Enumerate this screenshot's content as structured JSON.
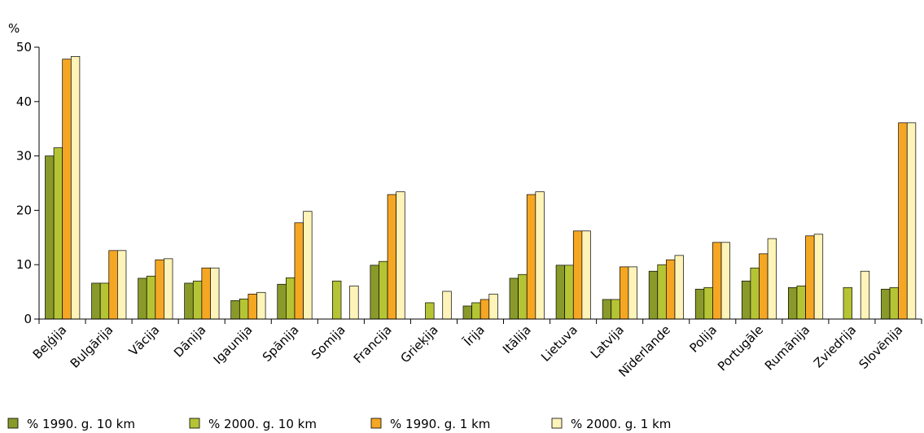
{
  "chart_data": {
    "type": "bar",
    "ylabel": "%",
    "ylim": [
      0,
      50
    ],
    "yticks": [
      0,
      10,
      20,
      30,
      40,
      50
    ],
    "grid": false,
    "legend_position": "bottom",
    "categories": [
      "Beļģija",
      "Bulgārija",
      "Vācija",
      "Dānija",
      "Igaunija",
      "Spānija",
      "Somija",
      "Francija",
      "Grieķija",
      "Īrija",
      "Itālija",
      "Lietuva",
      "Latvija",
      "Nīderlande",
      "Polija",
      "Portugāle",
      "Rumānija",
      "Zviedrija",
      "Slovēnija"
    ],
    "series": [
      {
        "name": "% 1990. g. 10 km",
        "color": "#8a9a2a",
        "values": [
          30,
          6.6,
          7.5,
          6.6,
          3.4,
          6.4,
          null,
          9.9,
          null,
          2.4,
          7.5,
          9.9,
          3.6,
          8.8,
          5.5,
          7.0,
          5.8,
          null,
          5.5
        ]
      },
      {
        "name": "% 2000. g. 10 km",
        "color": "#b5c434",
        "values": [
          31.5,
          6.6,
          7.9,
          7.0,
          3.7,
          7.6,
          7.0,
          10.6,
          3.0,
          3.0,
          8.2,
          9.9,
          3.6,
          10.0,
          5.8,
          9.4,
          6.1,
          5.8,
          5.8
        ]
      },
      {
        "name": "% 1990. g. 1 km",
        "color": "#f5a623",
        "values": [
          47.8,
          12.6,
          10.9,
          9.4,
          4.6,
          17.7,
          null,
          22.9,
          null,
          3.6,
          22.9,
          16.2,
          9.6,
          10.9,
          14.1,
          12.0,
          15.3,
          null,
          36.1
        ]
      },
      {
        "name": "% 2000. g. 1 km",
        "color": "#fef3b8",
        "values": [
          48.3,
          12.6,
          11.1,
          9.4,
          4.9,
          19.8,
          6.1,
          23.4,
          5.1,
          4.6,
          23.4,
          16.2,
          9.6,
          11.7,
          14.1,
          14.8,
          15.6,
          8.8,
          36.1
        ]
      }
    ]
  }
}
